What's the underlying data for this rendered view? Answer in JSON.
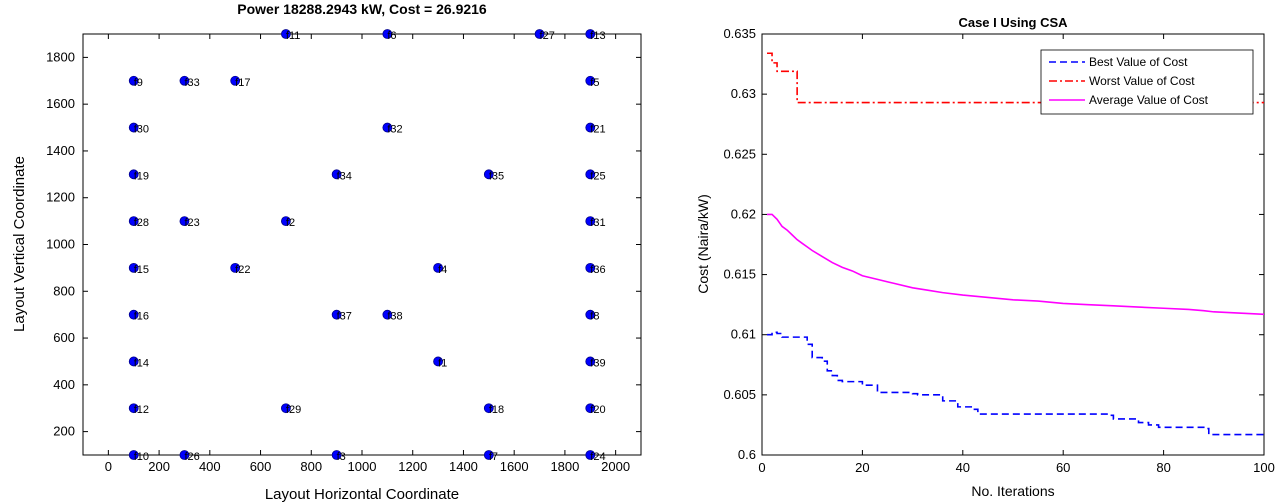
{
  "chart_data": [
    {
      "type": "scatter",
      "title": "Power 18288.2943 kW, Cost = 26.9216",
      "xlabel": "Layout Horizontal Coordinate",
      "ylabel": "Layout Vertical Coordinate",
      "xlim": [
        -100,
        2100
      ],
      "ylim": [
        100,
        1900
      ],
      "xticks": [
        0,
        200,
        400,
        600,
        800,
        1000,
        1200,
        1400,
        1600,
        1800,
        2000
      ],
      "yticks": [
        200,
        400,
        600,
        800,
        1000,
        1200,
        1400,
        1600,
        1800
      ],
      "marker_color": "#0000ff",
      "points": [
        {
          "label": "f1",
          "x": 1300,
          "y": 500
        },
        {
          "label": "f2",
          "x": 700,
          "y": 1100
        },
        {
          "label": "f3",
          "x": 900,
          "y": 100
        },
        {
          "label": "f4",
          "x": 1300,
          "y": 900
        },
        {
          "label": "f5",
          "x": 1900,
          "y": 1700
        },
        {
          "label": "f6",
          "x": 1100,
          "y": 1900
        },
        {
          "label": "f7",
          "x": 1500,
          "y": 100
        },
        {
          "label": "f8",
          "x": 1900,
          "y": 700
        },
        {
          "label": "f9",
          "x": 100,
          "y": 1700
        },
        {
          "label": "f10",
          "x": 100,
          "y": 100
        },
        {
          "label": "f11",
          "x": 700,
          "y": 1900
        },
        {
          "label": "f12",
          "x": 100,
          "y": 300
        },
        {
          "label": "f13",
          "x": 1900,
          "y": 1900
        },
        {
          "label": "f14",
          "x": 100,
          "y": 500
        },
        {
          "label": "f15",
          "x": 100,
          "y": 900
        },
        {
          "label": "f16",
          "x": 100,
          "y": 700
        },
        {
          "label": "f17",
          "x": 500,
          "y": 1700
        },
        {
          "label": "f18",
          "x": 1500,
          "y": 300
        },
        {
          "label": "f19",
          "x": 100,
          "y": 1300
        },
        {
          "label": "f20",
          "x": 1900,
          "y": 300
        },
        {
          "label": "f21",
          "x": 1900,
          "y": 1500
        },
        {
          "label": "f22",
          "x": 500,
          "y": 900
        },
        {
          "label": "f23",
          "x": 300,
          "y": 1100
        },
        {
          "label": "f24",
          "x": 1900,
          "y": 100
        },
        {
          "label": "f25",
          "x": 1900,
          "y": 1300
        },
        {
          "label": "f26",
          "x": 300,
          "y": 100
        },
        {
          "label": "f27",
          "x": 1700,
          "y": 1900
        },
        {
          "label": "f28",
          "x": 100,
          "y": 1100
        },
        {
          "label": "f29",
          "x": 700,
          "y": 300
        },
        {
          "label": "f30",
          "x": 100,
          "y": 1500
        },
        {
          "label": "f31",
          "x": 1900,
          "y": 1100
        },
        {
          "label": "f32",
          "x": 1100,
          "y": 1500
        },
        {
          "label": "f33",
          "x": 300,
          "y": 1700
        },
        {
          "label": "f34",
          "x": 900,
          "y": 1300
        },
        {
          "label": "f35",
          "x": 1500,
          "y": 1300
        },
        {
          "label": "f36",
          "x": 1900,
          "y": 900
        },
        {
          "label": "f37",
          "x": 900,
          "y": 700
        },
        {
          "label": "f38",
          "x": 1100,
          "y": 700
        },
        {
          "label": "f39",
          "x": 1900,
          "y": 500
        }
      ]
    },
    {
      "type": "line",
      "title": "Case I Using CSA",
      "xlabel": "No. Iterations",
      "ylabel": "Cost (Naira/kW)",
      "xlim": [
        0,
        100
      ],
      "ylim": [
        0.6,
        0.635
      ],
      "xticks": [
        0,
        20,
        40,
        60,
        80,
        100
      ],
      "yticks": [
        0.6,
        0.605,
        0.61,
        0.615,
        0.62,
        0.625,
        0.63,
        0.635
      ],
      "legend_position": "top-right",
      "series": [
        {
          "name": "Best Value of Cost",
          "color": "#0000ff",
          "style": "dashed",
          "x": [
            1,
            2,
            3,
            4,
            5,
            6,
            7,
            8,
            9,
            10,
            11,
            12,
            13,
            14,
            15,
            16,
            17,
            18,
            19,
            20,
            21,
            22,
            23,
            24,
            25,
            26,
            27,
            28,
            29,
            30,
            31,
            32,
            33,
            34,
            35,
            36,
            37,
            38,
            39,
            40,
            41,
            42,
            43,
            44,
            45,
            46,
            47,
            48,
            49,
            50,
            51,
            52,
            53,
            54,
            55,
            56,
            57,
            58,
            59,
            60,
            61,
            62,
            63,
            64,
            65,
            66,
            67,
            68,
            69,
            70,
            71,
            72,
            73,
            74,
            75,
            76,
            77,
            78,
            79,
            80,
            81,
            82,
            83,
            84,
            85,
            86,
            87,
            88,
            89,
            90,
            91,
            92,
            93,
            94,
            95,
            96,
            97,
            98,
            99,
            100
          ],
          "y": [
            0.61,
            0.6102,
            0.6101,
            0.6098,
            0.6098,
            0.6098,
            0.6098,
            0.6098,
            0.6092,
            0.6081,
            0.6081,
            0.6078,
            0.607,
            0.6066,
            0.6062,
            0.6061,
            0.6061,
            0.6061,
            0.6061,
            0.6058,
            0.6058,
            0.6058,
            0.6052,
            0.6052,
            0.6052,
            0.6052,
            0.6052,
            0.6052,
            0.6052,
            0.6051,
            0.605,
            0.605,
            0.605,
            0.605,
            0.605,
            0.6045,
            0.6045,
            0.6045,
            0.604,
            0.604,
            0.604,
            0.6038,
            0.6034,
            0.6034,
            0.6034,
            0.6034,
            0.6034,
            0.6034,
            0.6034,
            0.6034,
            0.6034,
            0.6034,
            0.6034,
            0.6034,
            0.6034,
            0.6034,
            0.6034,
            0.6034,
            0.6034,
            0.6034,
            0.6034,
            0.6034,
            0.6034,
            0.6034,
            0.6034,
            0.6034,
            0.6034,
            0.6034,
            0.6033,
            0.603,
            0.603,
            0.603,
            0.603,
            0.603,
            0.6027,
            0.6027,
            0.6025,
            0.6025,
            0.6023,
            0.6023,
            0.6023,
            0.6023,
            0.6023,
            0.6023,
            0.6023,
            0.6023,
            0.6023,
            0.6022,
            0.6017,
            0.6017,
            0.6017,
            0.6017,
            0.6017,
            0.6017,
            0.6017,
            0.6017,
            0.6017,
            0.6017,
            0.6017,
            0.6016
          ]
        },
        {
          "name": "Worst Value of Cost",
          "color": "#ff0000",
          "style": "dashdot",
          "x": [
            1,
            2,
            3,
            4,
            5,
            6,
            7,
            8,
            9,
            10,
            20,
            30,
            40,
            50,
            60,
            70,
            80,
            90,
            100
          ],
          "y": [
            0.6334,
            0.6326,
            0.6319,
            0.6319,
            0.6319,
            0.6319,
            0.6293,
            0.6293,
            0.6293,
            0.6293,
            0.6293,
            0.6293,
            0.6293,
            0.6293,
            0.6293,
            0.6293,
            0.6293,
            0.6293,
            0.6293
          ]
        },
        {
          "name": "Average Value of Cost",
          "color": "#ff00ff",
          "style": "solid",
          "x": [
            1,
            2,
            3,
            4,
            5,
            6,
            7,
            8,
            9,
            10,
            12,
            14,
            16,
            18,
            20,
            23,
            26,
            30,
            33,
            36,
            40,
            45,
            50,
            55,
            60,
            65,
            70,
            75,
            80,
            85,
            88,
            90,
            95,
            100
          ],
          "y": [
            0.62,
            0.62,
            0.6196,
            0.619,
            0.6187,
            0.6183,
            0.6179,
            0.6176,
            0.6173,
            0.617,
            0.6165,
            0.616,
            0.6156,
            0.6153,
            0.6149,
            0.6146,
            0.6143,
            0.6139,
            0.6137,
            0.6135,
            0.6133,
            0.6131,
            0.6129,
            0.6128,
            0.6126,
            0.6125,
            0.6124,
            0.6123,
            0.6122,
            0.6121,
            0.612,
            0.6119,
            0.6118,
            0.6117
          ]
        }
      ]
    }
  ]
}
